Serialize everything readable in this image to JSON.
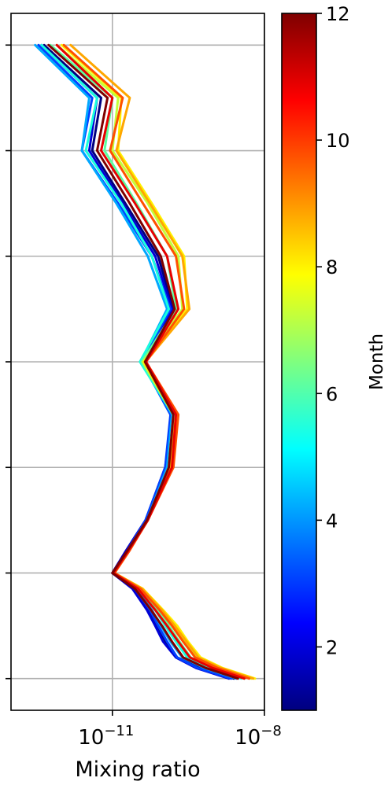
{
  "chart_data": {
    "type": "line",
    "xlabel": "Mixing ratio",
    "xscale": "log",
    "xlim": [
      1e-13,
      1e-08
    ],
    "xticks": [
      {
        "value": 1e-11,
        "base": "10",
        "exp": "−11"
      },
      {
        "value": 1e-08,
        "base": "10",
        "exp": "−8"
      }
    ],
    "ylim": [
      -0.3,
      6.3
    ],
    "yticks": [
      0,
      1,
      2,
      3,
      4,
      5,
      6
    ],
    "grid": true,
    "colorbar": {
      "label": "Month",
      "range": [
        1,
        12
      ],
      "ticks": [
        2,
        4,
        6,
        8,
        10,
        12
      ],
      "colormap_stops": [
        "#00007f",
        "#0000ff",
        "#007fff",
        "#00ffff",
        "#7fff7f",
        "#ffff00",
        "#ff7f00",
        "#ff0000",
        "#7f0000"
      ]
    },
    "y_levels": [
      0,
      0.1,
      0.2,
      0.35,
      0.5,
      0.65,
      0.85,
      1.0,
      1.2,
      1.5,
      2.0,
      2.5,
      3.0,
      3.5,
      4.0,
      4.5,
      5.0,
      5.5,
      6.0
    ],
    "series": [
      {
        "month": 1,
        "color": "#00007f",
        "x": [
          2.5e-09,
          5.5e-10,
          1.9e-10,
          1.1e-10,
          7.5e-11,
          5e-11,
          2.6e-11,
          1e-11,
          1.8e-11,
          4.5e-11,
          1.2e-10,
          1.6e-10,
          4.5e-11,
          1.6e-10,
          8e-11,
          1.8e-11,
          4e-12,
          6e-12,
          4.5e-13
        ]
      },
      {
        "month": 2,
        "color": "#0000d6",
        "x": [
          2e-09,
          4.5e-10,
          1.8e-10,
          1e-10,
          7e-11,
          4.8e-11,
          2.5e-11,
          1e-11,
          1.8e-11,
          4.5e-11,
          1.1e-10,
          1.5e-10,
          4e-11,
          1.5e-10,
          7e-11,
          1.6e-11,
          3.5e-12,
          5e-12,
          4e-13
        ]
      },
      {
        "month": 3,
        "color": "#0040ff",
        "x": [
          2.2e-09,
          4.8e-10,
          1.9e-10,
          1.2e-10,
          8e-11,
          5.5e-11,
          2.8e-11,
          1.05e-11,
          1.9e-11,
          4.5e-11,
          1.1e-10,
          1.4e-10,
          3.8e-11,
          1.4e-10,
          6e-11,
          1.3e-11,
          2.5e-12,
          4e-12,
          3.5e-13
        ]
      },
      {
        "month": 4,
        "color": "#00a8ff",
        "x": [
          2.8e-09,
          6.5e-10,
          2.4e-10,
          1.4e-10,
          9e-11,
          6e-11,
          3e-11,
          1.1e-11,
          2e-11,
          4.8e-11,
          1.2e-10,
          1.5e-10,
          3.6e-11,
          1.2e-10,
          5e-11,
          1.2e-11,
          2.5e-12,
          3.5e-12,
          3e-13
        ]
      },
      {
        "month": 5,
        "color": "#19ffde",
        "x": [
          3.5e-09,
          8.5e-10,
          3e-10,
          1.8e-10,
          1.1e-10,
          7e-11,
          3.2e-11,
          1.1e-11,
          2e-11,
          5e-11,
          1.3e-10,
          1.6e-10,
          3.5e-11,
          1.3e-10,
          6e-11,
          1.5e-11,
          3e-12,
          5e-12,
          4e-13
        ]
      },
      {
        "month": 6,
        "color": "#5cffa0",
        "x": [
          4e-09,
          1e-09,
          3.5e-10,
          2.1e-10,
          1.3e-10,
          8e-11,
          3.5e-11,
          1.1e-11,
          2e-11,
          5e-11,
          1.3e-10,
          1.6e-10,
          3.8e-11,
          1.8e-10,
          1.2e-10,
          3e-11,
          7e-12,
          1e-11,
          6e-13
        ]
      },
      {
        "month": 7,
        "color": "#c4ff39",
        "x": [
          5.5e-09,
          1.3e-09,
          4.5e-10,
          2.6e-10,
          1.6e-10,
          9e-11,
          3.8e-11,
          1.1e-11,
          2e-11,
          5e-11,
          1.3e-10,
          1.6e-10,
          4e-11,
          2.4e-10,
          2e-10,
          5e-11,
          1e-11,
          1.3e-11,
          8e-13
        ]
      },
      {
        "month": 8,
        "color": "#fff200",
        "x": [
          6.5e-09,
          1.5e-09,
          5.5e-10,
          3.1e-10,
          1.9e-10,
          1e-10,
          4e-11,
          1.1e-11,
          2e-11,
          5e-11,
          1.3e-10,
          1.6e-10,
          4.2e-11,
          3e-10,
          2.6e-10,
          6e-11,
          1.3e-11,
          1.5e-11,
          1e-12
        ]
      },
      {
        "month": 9,
        "color": "#ffa700",
        "x": [
          6e-09,
          1.4e-09,
          5e-10,
          2.9e-10,
          1.7e-10,
          9.5e-11,
          3.9e-11,
          1.1e-11,
          2e-11,
          5e-11,
          1.4e-10,
          1.8e-10,
          4.5e-11,
          3.3e-10,
          2.4e-10,
          5.5e-11,
          1.2e-11,
          2.2e-11,
          1.5e-12
        ]
      },
      {
        "month": 10,
        "color": "#ff5000",
        "x": [
          5e-09,
          1.2e-09,
          4.3e-10,
          2.5e-10,
          1.5e-10,
          8.5e-11,
          3.6e-11,
          1.1e-11,
          2.1e-11,
          5e-11,
          1.6e-10,
          2e-10,
          4.6e-11,
          2.6e-10,
          1.8e-10,
          4e-11,
          9e-12,
          1.6e-11,
          1.1e-12
        ]
      },
      {
        "month": 11,
        "color": "#e80000",
        "x": [
          4e-09,
          9.5e-10,
          3.4e-10,
          2e-10,
          1.2e-10,
          7e-11,
          3.2e-11,
          1.05e-11,
          2e-11,
          5e-11,
          1.5e-10,
          1.8e-10,
          4.6e-11,
          2e-10,
          1.2e-10,
          2.8e-11,
          6e-12,
          1e-11,
          8e-13
        ]
      },
      {
        "month": 12,
        "color": "#7f0000",
        "x": [
          3e-09,
          7e-10,
          2.5e-10,
          1.5e-10,
          9.5e-11,
          5.8e-11,
          2.8e-11,
          1e-11,
          1.9e-11,
          4.8e-11,
          1.3e-10,
          1.6e-10,
          4.4e-11,
          1.7e-10,
          9e-11,
          2.2e-11,
          5e-12,
          8e-12,
          5.5e-13
        ]
      }
    ]
  }
}
